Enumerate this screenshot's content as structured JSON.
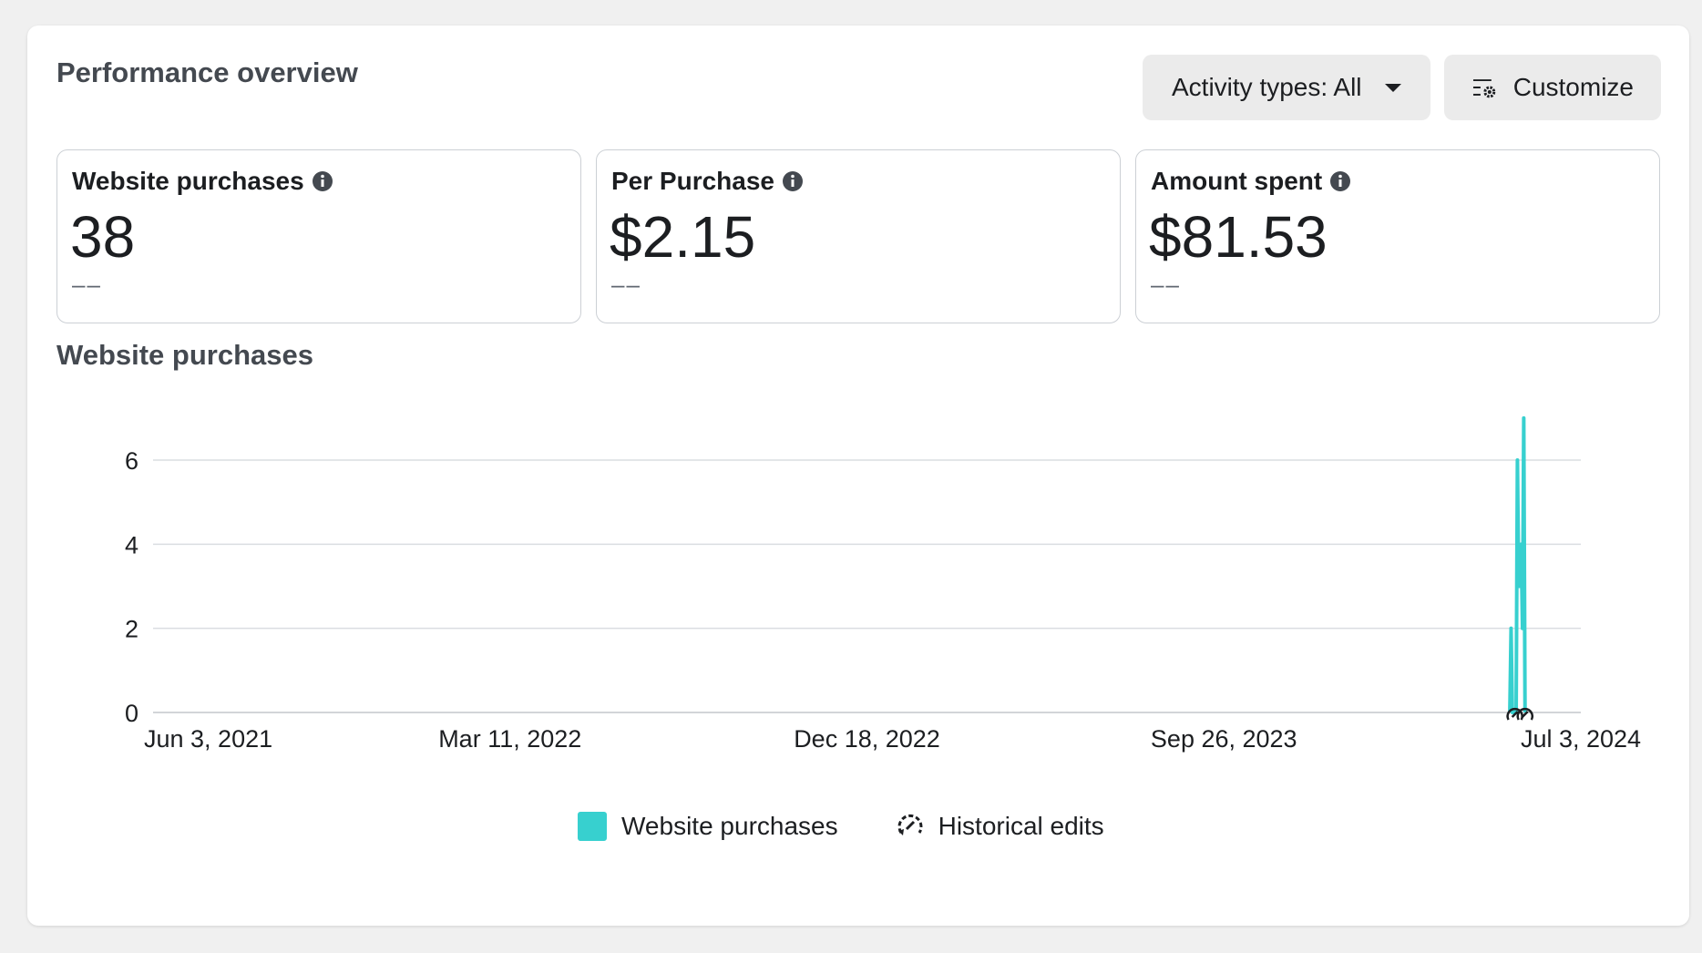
{
  "header": {
    "title": "Performance overview",
    "activity_button": "Activity types: All",
    "customize_button": "Customize"
  },
  "metrics": [
    {
      "label": "Website purchases",
      "value": "38",
      "sub": "––"
    },
    {
      "label": "Per Purchase",
      "value": "$2.15",
      "sub": "––"
    },
    {
      "label": "Amount spent",
      "value": "$81.53",
      "sub": "––"
    }
  ],
  "chart_section": {
    "title": "Website purchases"
  },
  "legend": {
    "series_label": "Website purchases",
    "edits_label": "Historical edits"
  },
  "colors": {
    "series": "#37d0cf",
    "grid": "#dadde1"
  },
  "chart_data": {
    "type": "line",
    "title": "Website purchases",
    "xlabel": "",
    "ylabel": "",
    "x_ticks": [
      "Jun 3, 2021",
      "Mar 11, 2022",
      "Dec 18, 2022",
      "Sep 26, 2023",
      "Jul 3, 2024"
    ],
    "y_ticks": [
      0,
      2,
      4,
      6
    ],
    "ylim": [
      0,
      7
    ],
    "xlim": [
      "2021-06-03",
      "2024-07-03"
    ],
    "grid": true,
    "legend_position": "bottom-center",
    "series": [
      {
        "name": "Website purchases",
        "points": [
          [
            "2024-05-08",
            0
          ],
          [
            "2024-05-09",
            2
          ],
          [
            "2024-05-10",
            0
          ],
          [
            "2024-05-13",
            0
          ],
          [
            "2024-05-14",
            6
          ],
          [
            "2024-05-15",
            3
          ],
          [
            "2024-05-16",
            3
          ],
          [
            "2024-05-17",
            4
          ],
          [
            "2024-05-18",
            2
          ],
          [
            "2024-05-19",
            7
          ],
          [
            "2024-05-20",
            0
          ]
        ]
      }
    ],
    "historical_edits": [
      "2024-05-12",
      "2024-05-20"
    ]
  }
}
